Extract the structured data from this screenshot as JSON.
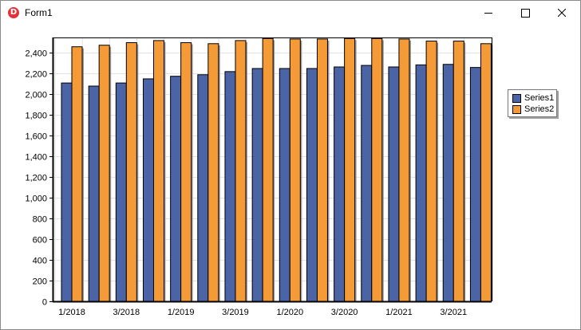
{
  "window": {
    "title": "Form1",
    "icon": "app-d-icon"
  },
  "colors": {
    "series1": "#4a64a6",
    "series2": "#f49a36"
  },
  "chart_data": {
    "type": "bar",
    "x": [
      "1/2018",
      "2/2018",
      "3/2018",
      "4/2018",
      "1/2019",
      "2/2019",
      "3/2019",
      "4/2019",
      "1/2020",
      "2/2020",
      "3/2020",
      "4/2020",
      "1/2021",
      "2/2021",
      "3/2021",
      "4/2021"
    ],
    "xtick_labels": [
      "1/2018",
      "3/2018",
      "1/2019",
      "3/2019",
      "1/2020",
      "3/2020",
      "1/2021",
      "3/2021"
    ],
    "series": [
      {
        "name": "Series1",
        "values": [
          2110,
          2080,
          2110,
          2150,
          2175,
          2190,
          2220,
          2250,
          2250,
          2250,
          2265,
          2280,
          2265,
          2285,
          2290,
          2260
        ]
      },
      {
        "name": "Series2",
        "values": [
          2460,
          2475,
          2500,
          2520,
          2500,
          2490,
          2520,
          2540,
          2535,
          2535,
          2540,
          2540,
          2535,
          2515,
          2515,
          2490
        ]
      }
    ],
    "ylim": [
      0,
      2550
    ],
    "yticks": [
      0,
      200,
      400,
      600,
      800,
      1000,
      1200,
      1400,
      1600,
      1800,
      2000,
      2200,
      2400
    ],
    "ytick_labels": [
      "0",
      "200",
      "400",
      "600",
      "800",
      "1,000",
      "1,200",
      "1,400",
      "1,600",
      "1,800",
      "2,000",
      "2,200",
      "2,400"
    ],
    "grid": true,
    "legend": "right"
  }
}
